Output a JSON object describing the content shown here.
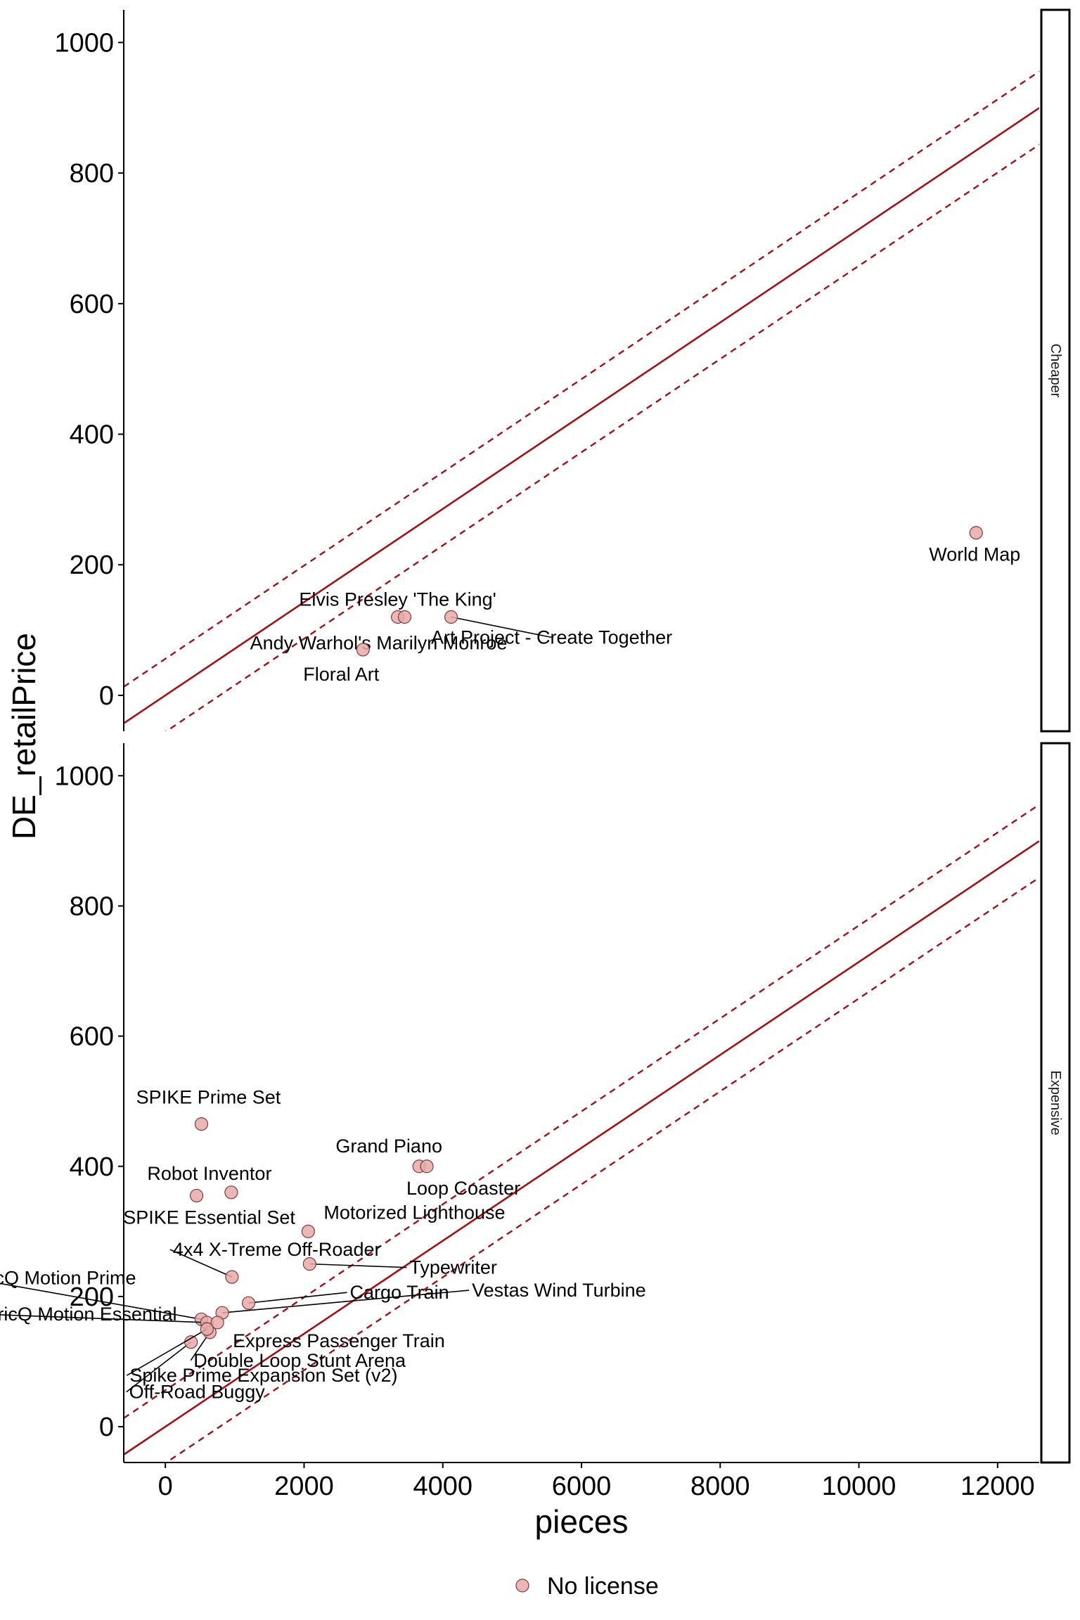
{
  "chart_data": {
    "type": "scatter",
    "xlabel": "pieces",
    "ylabel": "DE_retailPrice",
    "xlim": [
      -600,
      12600
    ],
    "ylim": [
      -55,
      1050
    ],
    "x_ticks": [
      0,
      2000,
      4000,
      6000,
      8000,
      10000,
      12000
    ],
    "y_ticks": [
      0,
      200,
      400,
      600,
      800,
      1000
    ],
    "grid": false,
    "reference_lines": {
      "solid": {
        "intercept": 0,
        "slope": 0.0714
      },
      "dashed_offset": 56,
      "color": "#a50f15"
    },
    "point_color": "#e6a9a9",
    "point_stroke": "#7a3b3b",
    "legend": {
      "position": "bottom",
      "entries": [
        "No license"
      ]
    },
    "panels": [
      {
        "strip": "Cheaper",
        "points": [
          {
            "x": 11690,
            "y": 249,
            "label": "World Map"
          },
          {
            "x": 3350,
            "y": 120,
            "label": "Elvis Presley  'The King'"
          },
          {
            "x": 3450,
            "y": 120,
            "label": "Andy Warhol's Marilyn Monroe"
          },
          {
            "x": 4120,
            "y": 120,
            "label": "Art Project - Create Together"
          },
          {
            "x": 2850,
            "y": 70,
            "label": "Floral Art"
          }
        ]
      },
      {
        "strip": "Expensive",
        "points": [
          {
            "x": 520,
            "y": 465,
            "label": "SPIKE Prime Set"
          },
          {
            "x": 3660,
            "y": 400,
            "label": "Grand Piano"
          },
          {
            "x": 3770,
            "y": 400,
            "label": "Loop Coaster"
          },
          {
            "x": 950,
            "y": 360,
            "label": "Robot Inventor"
          },
          {
            "x": 450,
            "y": 355,
            "label": "SPIKE Essential Set"
          },
          {
            "x": 2060,
            "y": 300,
            "label": "Motorized Lighthouse"
          },
          {
            "x": 2080,
            "y": 250,
            "label": "Typewriter"
          },
          {
            "x": 960,
            "y": 230,
            "label": "4x4 X-Treme Off-Roader"
          },
          {
            "x": 520,
            "y": 165,
            "label": "BricQ Motion Prime"
          },
          {
            "x": 600,
            "y": 160,
            "label": "BricQ Motion Essential"
          },
          {
            "x": 1200,
            "y": 190,
            "label": "Cargo Train"
          },
          {
            "x": 820,
            "y": 175,
            "label": "Vestas Wind Turbine"
          },
          {
            "x": 750,
            "y": 160,
            "label": "Express Passenger Train"
          },
          {
            "x": 640,
            "y": 145,
            "label": "Double Loop Stunt Arena"
          },
          {
            "x": 370,
            "y": 130,
            "label": "Off-Road Buggy"
          },
          {
            "x": 600,
            "y": 150,
            "label": "Spike Prime Expansion Set (v2)"
          }
        ]
      }
    ]
  }
}
